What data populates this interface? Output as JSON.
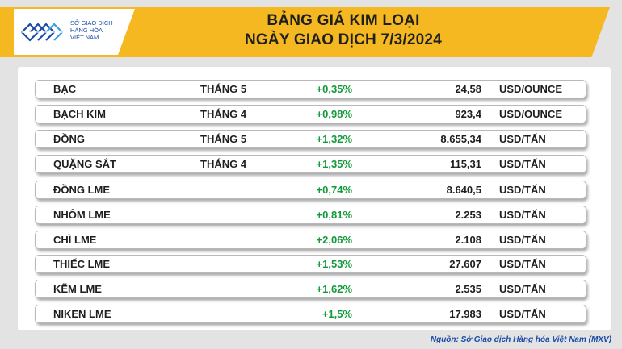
{
  "header": {
    "logo_text": "SỞ GIAO DỊCH\nHÀNG HÓA\nVIỆT NAM",
    "title": "BẢNG GIÁ KIM LOẠI",
    "subtitle": "NGÀY GIAO DỊCH 7/3/2024"
  },
  "colors": {
    "header_bar": "#f5b820",
    "positive_change": "#139a3b",
    "logo_blue": "#1b4aa8",
    "background": "#e3e3e3"
  },
  "rows": [
    {
      "name": "BẠC",
      "month": "THÁNG 5",
      "change": "+0,35%",
      "price": "24,58",
      "unit": "USD/OUNCE"
    },
    {
      "name": "BẠCH KIM",
      "month": "THÁNG 4",
      "change": "+0,98%",
      "price": "923,4",
      "unit": "USD/OUNCE"
    },
    {
      "name": "ĐỒNG",
      "month": "THÁNG 5",
      "change": "+1,32%",
      "price": "8.655,34",
      "unit": "USD/TẤN"
    },
    {
      "name": "QUẶNG SẮT",
      "month": "THÁNG 4",
      "change": "+1,35%",
      "price": "115,31",
      "unit": "USD/TẤN"
    },
    {
      "name": "ĐỒNG LME",
      "month": "",
      "change": "+0,74%",
      "price": "8.640,5",
      "unit": "USD/TẤN"
    },
    {
      "name": "NHÔM LME",
      "month": "",
      "change": "+0,81%",
      "price": "2.253",
      "unit": "USD/TẤN"
    },
    {
      "name": "CHÌ LME",
      "month": "",
      "change": "+2,06%",
      "price": "2.108",
      "unit": "USD/TẤN"
    },
    {
      "name": "THIẾC LME",
      "month": "",
      "change": "+1,53%",
      "price": "27.607",
      "unit": "USD/TẤN"
    },
    {
      "name": "KẼM LME",
      "month": "",
      "change": "+1,62%",
      "price": "2.535",
      "unit": "USD/TẤN"
    },
    {
      "name": "NIKEN LME",
      "month": "",
      "change": "+1,5%",
      "price": "17.983",
      "unit": "USD/TẤN"
    }
  ],
  "footer": {
    "source": "Nguồn: Sở Giao dịch Hàng hóa Việt Nam (MXV)"
  }
}
